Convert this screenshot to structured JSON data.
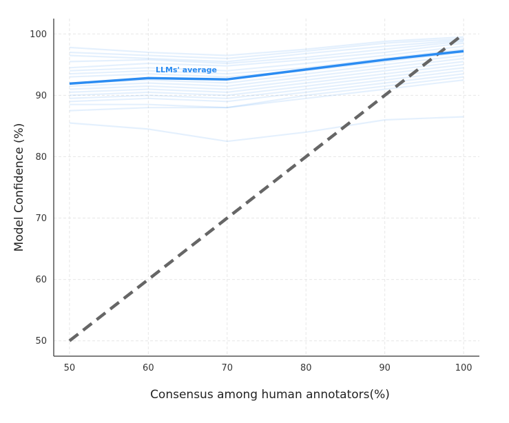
{
  "chart_data": {
    "type": "line",
    "xlabel": "Consensus among human annotators(%)",
    "ylabel": "Model Confidence (%)",
    "x": [
      50,
      60,
      70,
      80,
      90,
      100
    ],
    "xlim": [
      48,
      102
    ],
    "ylim": [
      47.5,
      102.5
    ],
    "xticks": [
      50,
      60,
      70,
      80,
      90,
      100
    ],
    "yticks": [
      50,
      60,
      70,
      80,
      90,
      100
    ],
    "grid": true,
    "colors": {
      "average": "#2b8cf2",
      "individual": "#2b8cf2",
      "diagonal": "#666666",
      "axis": "#555555",
      "grid": "#e6e6e6"
    },
    "average": {
      "name": "LLMs' average",
      "values": [
        91.9,
        92.8,
        92.6,
        94.2,
        95.8,
        97.2
      ]
    },
    "reference": {
      "x": [
        50,
        100
      ],
      "y": [
        50,
        100
      ]
    },
    "models": [
      [
        97.8,
        97.0,
        96.5,
        97.5,
        98.8,
        99.5
      ],
      [
        97.0,
        96.5,
        96.0,
        97.2,
        98.5,
        99.2
      ],
      [
        96.5,
        96.0,
        95.5,
        96.8,
        98.0,
        99.0
      ],
      [
        95.5,
        95.8,
        95.2,
        96.2,
        97.5,
        98.8
      ],
      [
        94.5,
        95.2,
        94.8,
        95.8,
        97.0,
        98.5
      ],
      [
        94.0,
        94.5,
        94.0,
        95.2,
        96.5,
        98.0
      ],
      [
        93.5,
        94.0,
        93.5,
        94.5,
        96.0,
        97.5
      ],
      [
        93.0,
        93.5,
        93.0,
        94.0,
        95.5,
        97.0
      ],
      [
        92.0,
        92.5,
        92.0,
        93.5,
        95.0,
        96.5
      ],
      [
        91.5,
        92.0,
        91.5,
        93.0,
        94.5,
        96.0
      ],
      [
        91.0,
        91.5,
        91.0,
        92.5,
        94.0,
        95.5
      ],
      [
        90.5,
        91.0,
        90.5,
        92.0,
        93.5,
        95.0
      ],
      [
        90.0,
        90.5,
        90.0,
        91.5,
        93.0,
        94.5
      ],
      [
        89.5,
        90.0,
        89.5,
        91.0,
        92.5,
        94.0
      ],
      [
        89.0,
        89.5,
        89.0,
        90.5,
        92.0,
        93.5
      ],
      [
        88.5,
        88.5,
        88.0,
        90.0,
        91.5,
        93.0
      ],
      [
        87.5,
        88.0,
        88.0,
        89.5,
        91.0,
        92.5
      ],
      [
        85.5,
        84.5,
        82.5,
        84.0,
        86.0,
        86.5
      ]
    ]
  }
}
